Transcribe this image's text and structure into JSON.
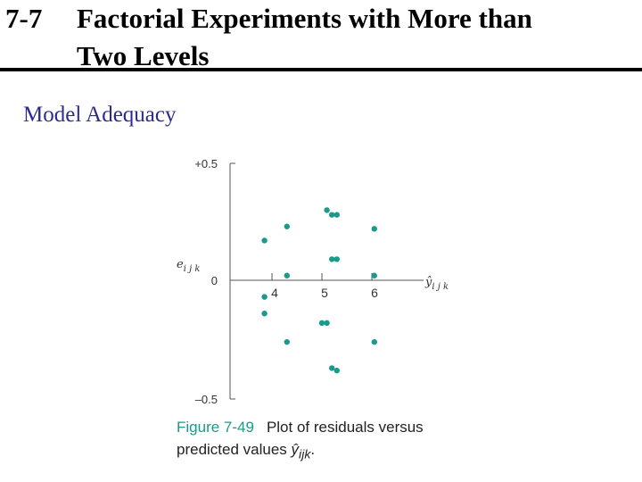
{
  "slide": {
    "number": "7-7",
    "title_line1": "Factorial Experiments with More than",
    "title_line2": "Two Levels",
    "subtitle": "Model Adequacy"
  },
  "caption": {
    "figure_label": "Figure 7-49",
    "text_line1": "Plot of residuals versus",
    "text_line2": "predicted values",
    "symbol_base": "ŷ",
    "symbol_sub": "ijk"
  },
  "colors": {
    "point": "#1a9a8a",
    "axis": "#555555",
    "title": "#000000",
    "subtitle": "#2b2b8f"
  },
  "chart_data": {
    "type": "scatter",
    "xlabel": "ŷ",
    "xlabel_sub": "i j k",
    "ylabel": "e",
    "ylabel_sub": "i j k",
    "x_ticks": [
      4,
      5,
      6
    ],
    "y_tick_labels": [
      "+0.5",
      "0",
      "–0.5"
    ],
    "y_ticks": [
      0.5,
      0,
      -0.5
    ],
    "xlim": [
      3.85,
      6.3
    ],
    "ylim": [
      -0.5,
      0.5
    ],
    "grid": false,
    "points": [
      {
        "x": 3.85,
        "y": 0.17
      },
      {
        "x": 3.85,
        "y": -0.07
      },
      {
        "x": 3.85,
        "y": -0.14
      },
      {
        "x": 4.3,
        "y": 0.23
      },
      {
        "x": 4.3,
        "y": 0.02
      },
      {
        "x": 4.3,
        "y": -0.26
      },
      {
        "x": 5.1,
        "y": 0.3
      },
      {
        "x": 5.2,
        "y": 0.28
      },
      {
        "x": 5.3,
        "y": 0.28
      },
      {
        "x": 5.2,
        "y": 0.09
      },
      {
        "x": 5.3,
        "y": 0.09
      },
      {
        "x": 5.0,
        "y": -0.18
      },
      {
        "x": 5.1,
        "y": -0.18
      },
      {
        "x": 5.2,
        "y": -0.37
      },
      {
        "x": 5.3,
        "y": -0.38
      },
      {
        "x": 6.05,
        "y": 0.22
      },
      {
        "x": 6.05,
        "y": 0.02
      },
      {
        "x": 6.05,
        "y": -0.26
      }
    ]
  }
}
